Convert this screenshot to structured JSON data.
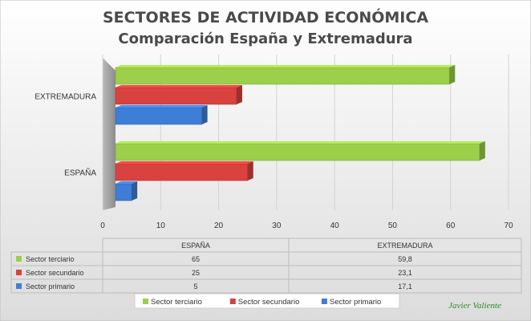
{
  "chart_data": {
    "type": "bar",
    "orientation": "horizontal",
    "title": "SECTORES DE ACTIVIDAD ECONÓMICA",
    "subtitle": "Comparación España y Extremadura",
    "categories": [
      "ESPAÑA",
      "EXTREMADURA"
    ],
    "series": [
      {
        "name": "Sector terciario",
        "values_text": [
          "65",
          "59,8"
        ],
        "values": [
          65,
          59.8
        ],
        "color": "#9ccf4a"
      },
      {
        "name": "Sector secundario",
        "values_text": [
          "25",
          "23,1"
        ],
        "values": [
          25,
          23.1
        ],
        "color": "#d9423e"
      },
      {
        "name": "Sector primario",
        "values_text": [
          "5",
          "17,1"
        ],
        "values": [
          5,
          17.1
        ],
        "color": "#3f7ed6"
      }
    ],
    "xlim": [
      0,
      70
    ],
    "xticks": [
      0,
      10,
      20,
      30,
      40,
      50,
      60,
      70
    ],
    "grid": true,
    "legend_position": "bottom",
    "data_table": true
  },
  "signature": "Javier Valiente"
}
